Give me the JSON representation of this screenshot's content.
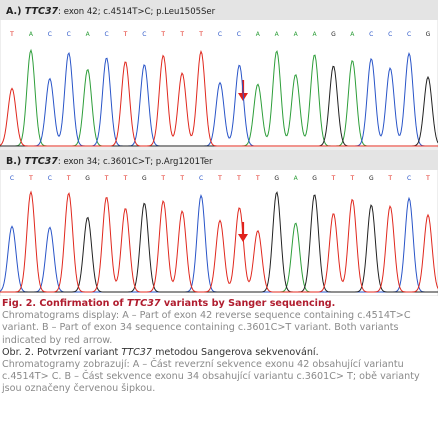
{
  "panels": [
    {
      "label": "A.)",
      "gene": "TTC37",
      "detail": ": exon 42; c.4514T>C; p.Leu1505Ser",
      "bases": [
        "T",
        "A",
        "C",
        "C",
        "A",
        "C",
        "T",
        "C",
        "T",
        "T",
        "T",
        "C",
        "C",
        "A",
        "A",
        "A",
        "A",
        "G",
        "A",
        "C",
        "C",
        "C",
        "G"
      ]
    },
    {
      "label": "B.)",
      "gene": "TTC37",
      "detail": ": exon 34; c.3601C>T; p.Arg1201Ter",
      "bases": [
        "C",
        "T",
        "C",
        "T",
        "G",
        "T",
        "T",
        "G",
        "T",
        "T",
        "C",
        "T",
        "T",
        "T",
        "G",
        "A",
        "G",
        "T",
        "T",
        "G",
        "T",
        "C",
        "T"
      ]
    }
  ],
  "caption": {
    "en_title": {
      "prefix": "Fig. 2. Confirmation of ",
      "gene": "TTC37",
      "suffix": " variants by Sanger sequencing."
    },
    "en_text": "Chromatograms display: A – Part of exon 42 reverse sequence containing c.4514T>C variant. B – Part of exon 34 sequence containing c.3601C>T variant. Both variants indicated by red arrow.",
    "cz_title": {
      "prefix": "Obr. 2. Potvrzení variant ",
      "gene": "TTC37",
      "suffix": " metodou Sangerova sekvenování."
    },
    "cz_text": "Chromatogramy zobrazují: A – Část reverzní sekvence exonu 42 obsahující variantu c.4514T> C. B – Část sekvence exonu 34 obsahující variantu c.3601C> T; obě varianty jsou označeny červenou šipkou."
  }
}
